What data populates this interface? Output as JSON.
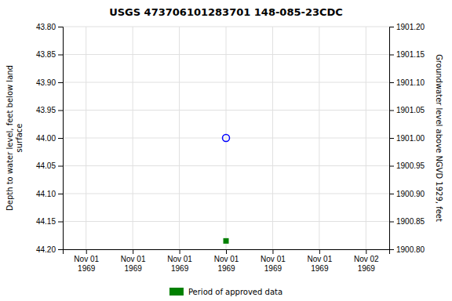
{
  "chart_data": {
    "type": "scatter",
    "title": "USGS 473706101283701 148-085-23CDC",
    "ylabel": "Depth to water level, feet below land\nsurface",
    "y2label": "Groundwater level above NGVD 1929, feet",
    "categories": [
      "Nov 01\n1969",
      "Nov 01\n1969",
      "Nov 01\n1969",
      "Nov 01\n1969",
      "Nov 01\n1969",
      "Nov 01\n1969",
      "Nov 02\n1969"
    ],
    "series": [
      {
        "color": "blue",
        "marker": "circle-open",
        "values": [
          null,
          null,
          null,
          44.0,
          null,
          null,
          null
        ]
      },
      {
        "name": "Period of approved data",
        "color": "green",
        "marker": "square",
        "values": [
          null,
          null,
          null,
          44.185,
          null,
          null,
          null
        ]
      }
    ],
    "ylim": [
      44.2,
      43.8
    ],
    "yticks": [
      {
        "value": 43.8,
        "label": "43.80"
      },
      {
        "value": 43.85,
        "label": "43.85"
      },
      {
        "value": 43.9,
        "label": "43.90"
      },
      {
        "value": 43.95,
        "label": "43.95"
      },
      {
        "value": 44.0,
        "label": "44.00"
      },
      {
        "value": 44.05,
        "label": "44.05"
      },
      {
        "value": 44.1,
        "label": "44.10"
      },
      {
        "value": 44.15,
        "label": "44.15"
      },
      {
        "value": 44.2,
        "label": "44.20"
      }
    ],
    "y2lim": [
      1900.8,
      1901.2
    ],
    "y2ticks": [
      {
        "value": 1900.8,
        "label": "1900.80"
      },
      {
        "value": 1900.85,
        "label": "1900.85"
      },
      {
        "value": 1900.9,
        "label": "1900.90"
      },
      {
        "value": 1900.95,
        "label": "1900.95"
      },
      {
        "value": 1901.0,
        "label": "1901.00"
      },
      {
        "value": 1901.05,
        "label": "1901.05"
      },
      {
        "value": 1901.1,
        "label": "1901.10"
      },
      {
        "value": 1901.15,
        "label": "1901.15"
      },
      {
        "value": 1901.2,
        "label": "1901.20"
      }
    ],
    "grid": true,
    "legend": "bottom"
  }
}
